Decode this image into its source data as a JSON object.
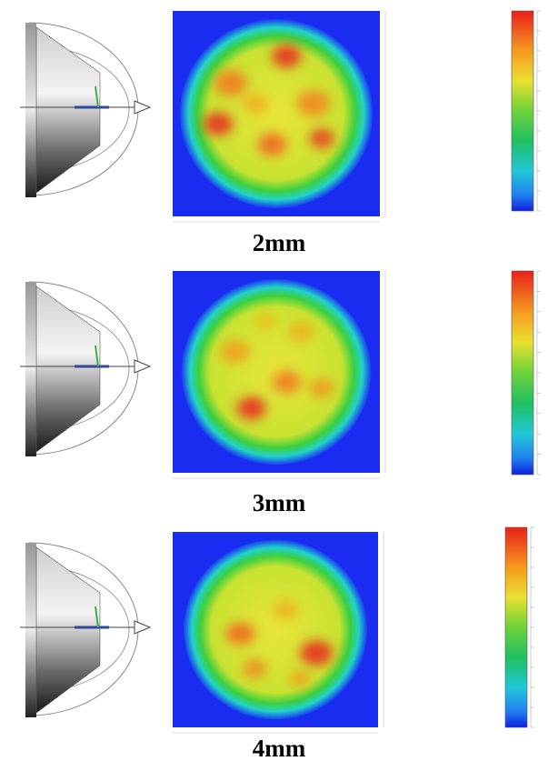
{
  "panels": [
    {
      "label": "2mm"
    },
    {
      "label": "3mm"
    },
    {
      "label": "4mm"
    }
  ]
}
